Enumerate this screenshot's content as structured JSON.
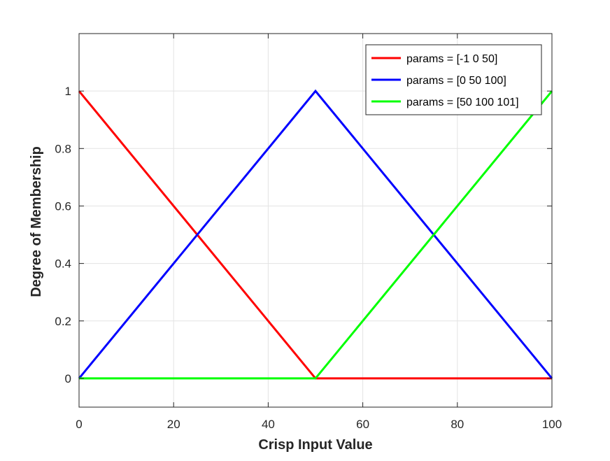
{
  "chart_data": {
    "type": "line",
    "title": "",
    "xlabel": "Crisp Input Value",
    "ylabel": "Degree of Membership",
    "xlim": [
      0,
      100
    ],
    "ylim": [
      -0.1,
      1.2
    ],
    "xticks": [
      0,
      20,
      40,
      60,
      80,
      100
    ],
    "yticks": [
      0,
      0.2,
      0.4,
      0.6,
      0.8,
      1
    ],
    "xtick_labels": [
      "0",
      "20",
      "40",
      "60",
      "80",
      "100"
    ],
    "ytick_labels": [
      "0",
      "0.2",
      "0.4",
      "0.6",
      "0.8",
      "1"
    ],
    "grid": true,
    "legend_position": "top-right",
    "series": [
      {
        "name": "params = [-1 0 50]",
        "color": "#ff0000",
        "x": [
          0,
          50,
          100
        ],
        "y": [
          1,
          0,
          0
        ]
      },
      {
        "name": "params = [0 50 100]",
        "color": "#0000ff",
        "x": [
          0,
          50,
          100
        ],
        "y": [
          0,
          1,
          0
        ]
      },
      {
        "name": "params = [50 100 101]",
        "color": "#00ff00",
        "x": [
          0,
          50,
          100
        ],
        "y": [
          0,
          0,
          1
        ]
      }
    ]
  }
}
